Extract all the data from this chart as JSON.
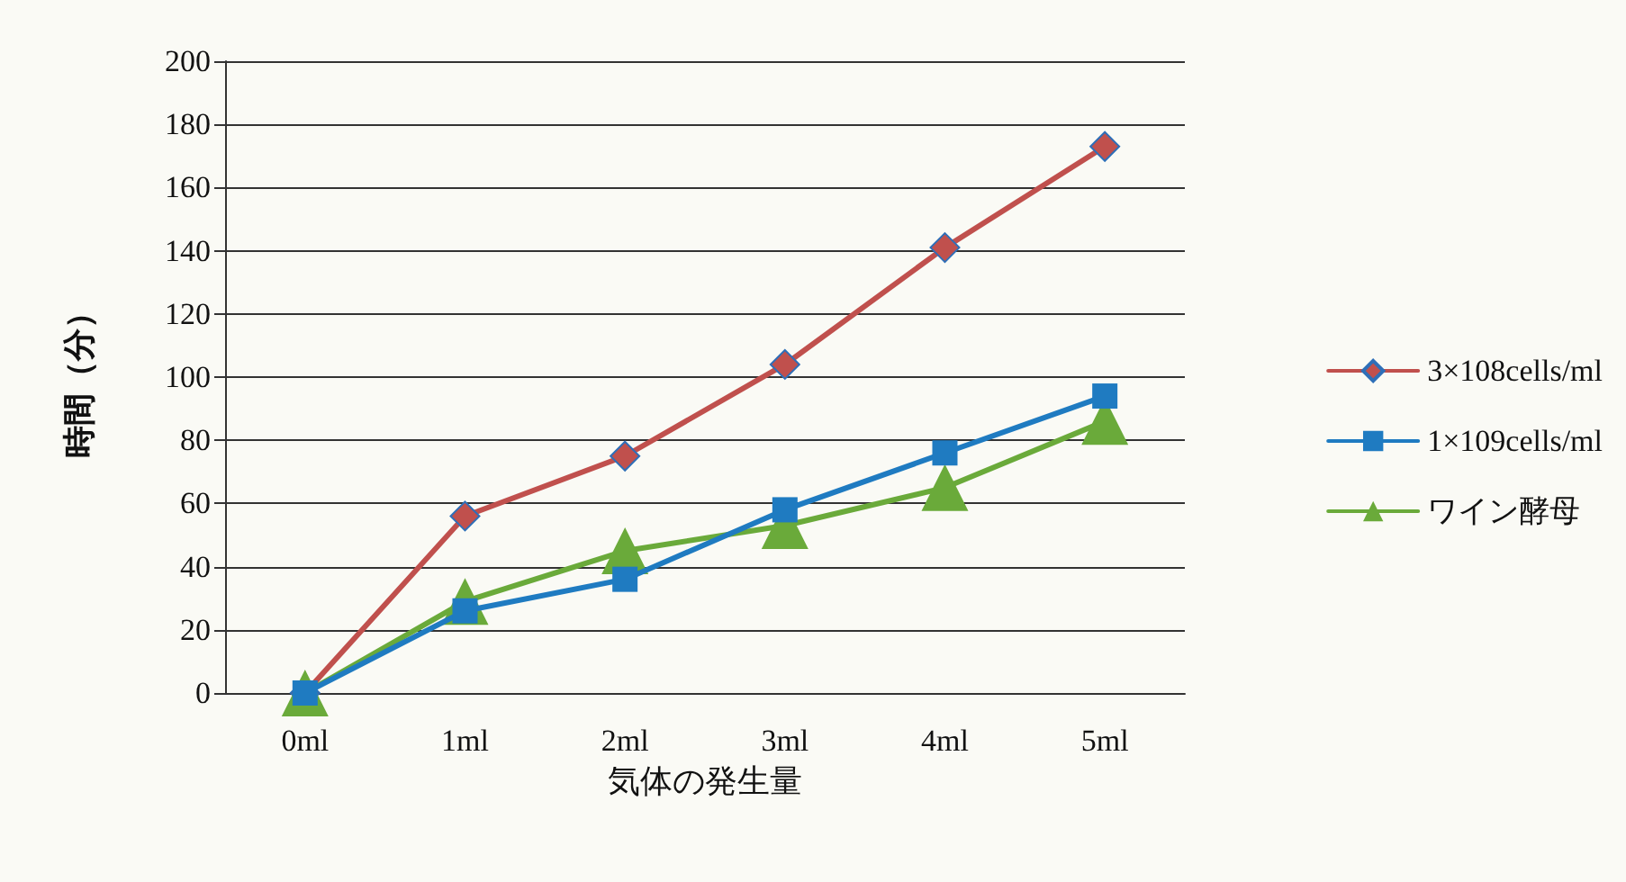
{
  "chart_data": {
    "type": "line",
    "xlabel": "気体の発生量",
    "ylabel": "時間（分）",
    "categories": [
      "0ml",
      "1ml",
      "2ml",
      "3ml",
      "4ml",
      "5ml"
    ],
    "series": [
      {
        "name": "3×108cells/ml",
        "color": "#c0504d",
        "marker": "diamond",
        "values": [
          0,
          56,
          75,
          104,
          141,
          173
        ]
      },
      {
        "name": "1×109cells/ml",
        "color": "#1f7bc1",
        "marker": "square",
        "values": [
          0,
          26,
          36,
          58,
          76,
          94
        ]
      },
      {
        "name": "ワイン酵母",
        "color": "#6aaa3a",
        "marker": "triangle",
        "values": [
          0,
          29,
          45,
          53,
          65,
          86
        ]
      }
    ],
    "ylim": [
      0,
      200
    ],
    "yticks": [
      0,
      20,
      40,
      60,
      80,
      100,
      120,
      140,
      160,
      180,
      200
    ],
    "grid": "y",
    "legend": "right"
  }
}
